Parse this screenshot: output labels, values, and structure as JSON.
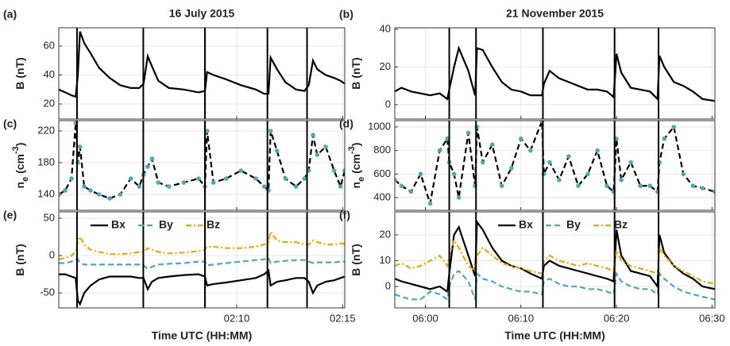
{
  "chart_data": [
    {
      "type": "line",
      "panel": "(a)",
      "title": "16 July 2015",
      "ylabel": [
        {
          "text": "B (nT)"
        }
      ],
      "x": [
        121.6,
        121.9,
        122.2,
        122.4,
        122.5,
        122.6,
        122.8,
        123.1,
        123.5,
        124,
        124.5,
        125,
        125.4,
        125.6,
        125.8,
        126,
        126.3,
        126.8,
        127.5,
        128.2,
        128.5,
        128.6,
        128.9,
        129.5,
        130.2,
        130.9,
        131.3,
        131.5,
        131.6,
        131.9,
        132.3,
        132.8,
        133.2,
        133.4,
        133.6,
        133.8,
        134.2,
        134.6,
        134.9,
        135.1
      ],
      "series": [
        {
          "color": "#000000",
          "values": [
            30,
            28,
            26,
            25,
            40,
            70,
            62,
            55,
            45,
            38,
            33,
            31,
            31,
            34,
            53,
            46,
            36,
            31,
            30,
            28,
            29,
            42,
            40,
            37,
            33,
            30,
            27,
            27,
            52,
            44,
            35,
            30,
            29,
            33,
            50,
            44,
            40,
            38,
            36,
            34
          ]
        }
      ],
      "xlim": [
        121.6,
        135.1
      ],
      "ylim": [
        9.6,
        72.6
      ],
      "yticks": [
        20,
        40,
        60
      ],
      "event_times": [
        122.46,
        125.59,
        128.5,
        131.45,
        133.32
      ],
      "grid": true
    },
    {
      "type": "line",
      "panel": "(b)",
      "title": "21 November 2015",
      "ylabel": [
        {
          "text": "B (nT)"
        }
      ],
      "x": [
        356.8,
        357.5,
        358.5,
        359.5,
        360.5,
        361.5,
        362.3,
        362.5,
        363,
        363.5,
        364.5,
        365.2,
        365.4,
        366,
        367,
        368,
        369,
        370,
        371,
        372.2,
        372.4,
        373,
        374,
        375,
        376,
        377,
        378,
        379,
        379.7,
        380,
        380.5,
        381.5,
        382.5,
        383.5,
        384.3,
        384.5,
        385,
        386,
        387,
        388,
        389,
        390.3
      ],
      "series": [
        {
          "color": "#000000",
          "values": [
            7,
            9,
            7,
            6,
            5,
            6,
            3,
            8,
            20,
            30,
            18,
            5,
            30,
            29,
            20,
            12,
            8,
            7,
            5,
            5,
            11,
            18,
            14,
            12,
            10,
            8,
            8,
            7,
            4,
            27,
            17,
            9,
            8,
            7,
            3,
            26,
            20,
            12,
            10,
            7,
            3,
            2
          ]
        }
      ],
      "xlim": [
        356.8,
        390.3
      ],
      "ylim": [
        -7.6,
        40.8
      ],
      "yticks": [
        0,
        20,
        40
      ],
      "event_times": [
        362.5,
        365.3,
        372.3,
        379.8,
        384.4
      ],
      "grid": true
    },
    {
      "type": "line",
      "panel": "(c)",
      "ylabel": [
        {
          "text": "n"
        },
        {
          "text": "e",
          "shift": "sub"
        },
        {
          "text": " (cm"
        },
        {
          "text": "-3",
          "shift": "sup"
        },
        {
          "text": ")"
        }
      ],
      "x": [
        121.6,
        121.9,
        122.2,
        122.4,
        122.5,
        122.6,
        122.8,
        123.1,
        123.5,
        124,
        124.5,
        125,
        125.4,
        125.6,
        125.8,
        126,
        126.3,
        126.8,
        127.5,
        128.2,
        128.5,
        128.6,
        128.9,
        129.5,
        130.2,
        130.9,
        131.3,
        131.5,
        131.6,
        131.9,
        132.3,
        132.8,
        133.2,
        133.4,
        133.6,
        133.8,
        134.2,
        134.6,
        134.9,
        135.1
      ],
      "series": [
        {
          "color": "#000000",
          "marker_color": "#4aabb5",
          "dash": "dashed",
          "values": [
            140,
            145,
            160,
            230,
            180,
            200,
            150,
            145,
            140,
            135,
            140,
            160,
            150,
            165,
            175,
            185,
            155,
            150,
            155,
            160,
            150,
            220,
            155,
            160,
            170,
            160,
            150,
            145,
            220,
            195,
            160,
            150,
            160,
            170,
            215,
            190,
            200,
            170,
            150,
            170
          ]
        }
      ],
      "xlim": [
        121.6,
        135.1
      ],
      "ylim": [
        120,
        233
      ],
      "yticks": [
        140,
        180,
        220
      ],
      "event_times": [
        122.46,
        125.59,
        128.5,
        131.45,
        133.32
      ],
      "grid": true
    },
    {
      "type": "line",
      "panel": "(d)",
      "ylabel": [
        {
          "text": "n"
        },
        {
          "text": "e",
          "shift": "sub"
        },
        {
          "text": " (cm"
        },
        {
          "text": "-3",
          "shift": "sup"
        },
        {
          "text": ")"
        }
      ],
      "x": [
        356.8,
        357.5,
        358.5,
        359.5,
        360.5,
        361.5,
        362.3,
        362.5,
        363,
        363.5,
        364.5,
        365.2,
        365.4,
        366,
        367,
        368,
        369,
        370,
        371,
        372.2,
        372.4,
        373,
        374,
        375,
        376,
        377,
        378,
        379,
        379.7,
        380,
        380.5,
        381.5,
        382.5,
        383.5,
        384.3,
        384.5,
        385,
        386,
        387,
        388,
        389,
        390.3
      ],
      "series": [
        {
          "color": "#000000",
          "marker_color": "#4aabb5",
          "dash": "dashed",
          "values": [
            550,
            500,
            450,
            600,
            350,
            800,
            900,
            700,
            600,
            400,
            950,
            500,
            1000,
            700,
            850,
            500,
            650,
            900,
            800,
            1050,
            600,
            700,
            550,
            750,
            500,
            600,
            800,
            500,
            450,
            900,
            550,
            700,
            500,
            500,
            450,
            700,
            900,
            1000,
            600,
            500,
            480,
            450
          ]
        }
      ],
      "xlim": [
        356.8,
        390.3
      ],
      "ylim": [
        292,
        1054
      ],
      "yticks": [
        400,
        600,
        800,
        1000
      ],
      "event_times": [
        362.5,
        365.3,
        372.3,
        379.8,
        384.4
      ],
      "grid": true
    },
    {
      "type": "line",
      "panel": "(e)",
      "ylabel": [
        {
          "text": "B (nT)"
        }
      ],
      "xlabel": "Time UTC (HH:MM)",
      "x": [
        121.6,
        121.9,
        122.2,
        122.4,
        122.5,
        122.6,
        122.8,
        123.1,
        123.5,
        124,
        124.5,
        125,
        125.4,
        125.6,
        125.8,
        126,
        126.3,
        126.8,
        127.5,
        128.2,
        128.5,
        128.6,
        128.9,
        129.5,
        130.2,
        130.9,
        131.3,
        131.5,
        131.6,
        131.9,
        132.3,
        132.8,
        133.2,
        133.4,
        133.6,
        133.8,
        134.2,
        134.6,
        134.9,
        135.1
      ],
      "series": [
        {
          "name": "Bx",
          "color": "#000000",
          "dash": "solid",
          "values": [
            -25,
            -25,
            -28,
            -30,
            -60,
            -65,
            -50,
            -40,
            -32,
            -28,
            -28,
            -28,
            -30,
            -30,
            -45,
            -35,
            -30,
            -28,
            -26,
            -25,
            -28,
            -40,
            -38,
            -36,
            -33,
            -30,
            -25,
            -20,
            -40,
            -35,
            -33,
            -30,
            -30,
            -35,
            -50,
            -40,
            -35,
            -33,
            -30,
            -28
          ]
        },
        {
          "name": "By",
          "color": "#4aabb5",
          "dash": "dashed",
          "values": [
            -10,
            -10,
            -8,
            -5,
            -5,
            -10,
            -12,
            -12,
            -12,
            -12,
            -12,
            -12,
            -12,
            -13,
            -18,
            -15,
            -12,
            -11,
            -10,
            -8,
            -8,
            -13,
            -12,
            -10,
            -8,
            -6,
            -5,
            -3,
            -10,
            -8,
            -7,
            -6,
            -6,
            -8,
            -10,
            -9,
            -9,
            -9,
            -8,
            -8
          ]
        },
        {
          "name": "Bz",
          "color": "#f0a800",
          "dash": "dashdot",
          "values": [
            -5,
            -3,
            0,
            5,
            20,
            25,
            15,
            8,
            5,
            2,
            2,
            3,
            5,
            5,
            10,
            8,
            5,
            3,
            4,
            6,
            8,
            12,
            12,
            10,
            10,
            12,
            15,
            18,
            32,
            20,
            18,
            18,
            15,
            15,
            20,
            18,
            15,
            15,
            16,
            16
          ]
        }
      ],
      "xlim": [
        121.6,
        135.1
      ],
      "xticks": [
        {
          "value": 130,
          "label": "02:10"
        },
        {
          "value": 135,
          "label": "02:15"
        }
      ],
      "ylim": [
        -70,
        58.5
      ],
      "yticks": [
        -50,
        0,
        50
      ],
      "event_times": [
        122.46,
        125.59,
        128.5,
        131.45,
        133.32
      ],
      "grid": true
    },
    {
      "type": "line",
      "panel": "(f)",
      "ylabel": [
        {
          "text": "B (nT)"
        }
      ],
      "xlabel": "Time UTC (HH:MM)",
      "x": [
        356.8,
        357.5,
        358.5,
        359.5,
        360.5,
        361.5,
        362.3,
        362.5,
        363,
        363.5,
        364.5,
        365.2,
        365.4,
        366,
        367,
        368,
        369,
        370,
        371,
        372.2,
        372.4,
        373,
        374,
        375,
        376,
        377,
        378,
        379,
        379.7,
        380,
        380.5,
        381.5,
        382.5,
        383.5,
        384.3,
        384.5,
        385,
        386,
        387,
        388,
        389,
        390.3
      ],
      "series": [
        {
          "name": "Bx",
          "color": "#000000",
          "dash": "solid",
          "values": [
            3,
            2,
            1,
            0,
            -1,
            0,
            -2,
            5,
            20,
            23,
            12,
            4,
            25,
            22,
            15,
            10,
            8,
            7,
            5,
            3,
            8,
            10,
            8,
            7,
            6,
            5,
            4,
            3,
            2,
            22,
            12,
            6,
            5,
            4,
            0,
            20,
            13,
            8,
            5,
            3,
            0,
            -1
          ]
        },
        {
          "name": "By",
          "color": "#4aabb5",
          "dash": "dashed",
          "values": [
            -3,
            -4,
            -5,
            -5,
            -2,
            -3,
            -5,
            0,
            5,
            6,
            2,
            -5,
            5,
            3,
            2,
            0,
            -1,
            -2,
            -2,
            -3,
            2,
            3,
            1,
            0,
            0,
            -1,
            -1,
            -2,
            -3,
            5,
            2,
            0,
            -1,
            -1,
            -3,
            5,
            3,
            0,
            -2,
            -3,
            -4,
            -5
          ]
        },
        {
          "name": "Bz",
          "color": "#f0a800",
          "dash": "dashdot",
          "values": [
            8,
            9,
            7,
            8,
            10,
            12,
            8,
            12,
            18,
            15,
            8,
            6,
            12,
            15,
            12,
            9,
            8,
            7,
            6,
            5,
            10,
            12,
            10,
            9,
            8,
            9,
            8,
            7,
            6,
            14,
            10,
            8,
            7,
            6,
            5,
            15,
            12,
            8,
            6,
            4,
            2,
            1
          ]
        }
      ],
      "xlim": [
        356.8,
        390.3
      ],
      "xticks": [
        {
          "value": 360,
          "label": "06:00"
        },
        {
          "value": 370,
          "label": "06:10"
        },
        {
          "value": 380,
          "label": "06:20"
        },
        {
          "value": 390,
          "label": "06:30"
        }
      ],
      "ylim": [
        -8.3,
        28.9
      ],
      "yticks": [
        0,
        10,
        20
      ],
      "event_times": [
        362.5,
        365.3,
        372.3,
        379.8,
        384.4
      ],
      "grid": true
    }
  ]
}
